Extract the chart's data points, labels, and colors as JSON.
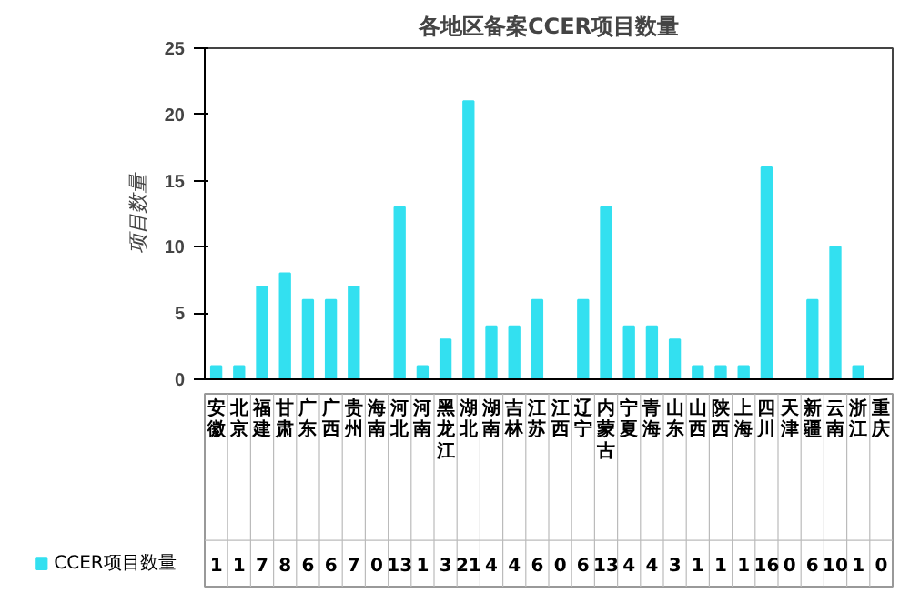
{
  "chart_data": {
    "type": "bar",
    "title": "各地区备案CCER项目数量",
    "ylabel": "项目数量",
    "categories": [
      "安徽",
      "北京",
      "福建",
      "甘肃",
      "广东",
      "广西",
      "贵州",
      "海南",
      "河北",
      "河南",
      "黑龙江",
      "湖北",
      "湖南",
      "吉林",
      "江苏",
      "江西",
      "辽宁",
      "内蒙古",
      "宁夏",
      "青海",
      "山东",
      "山西",
      "陕西",
      "上海",
      "四川",
      "天津",
      "新疆",
      "云南",
      "浙江",
      "重庆"
    ],
    "series": [
      {
        "name": "CCER项目数量",
        "color": "#33e0f0",
        "values": [
          1,
          1,
          7,
          8,
          6,
          6,
          7,
          0,
          13,
          1,
          3,
          21,
          4,
          4,
          6,
          0,
          6,
          13,
          4,
          4,
          3,
          1,
          1,
          1,
          16,
          0,
          6,
          10,
          1,
          0
        ]
      }
    ],
    "ylim": [
      0,
      25
    ],
    "yticks": [
      0,
      5,
      10,
      15,
      20,
      25
    ],
    "grid": false,
    "legend": "bottom",
    "data_labels": true
  }
}
